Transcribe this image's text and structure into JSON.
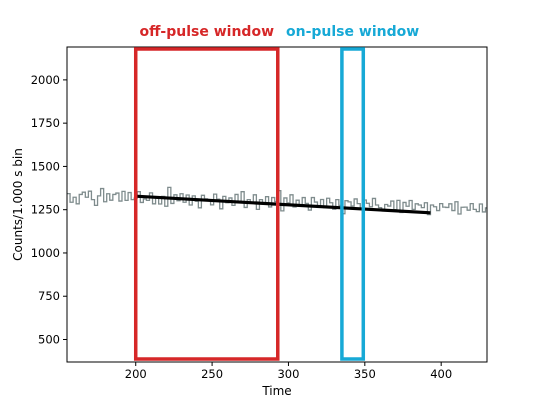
{
  "chart_data": {
    "type": "line",
    "xlabel": "Time",
    "ylabel": "Counts/1.000 s bin",
    "xlim": [
      155,
      430
    ],
    "ylim": [
      370,
      2190
    ],
    "xticks": [
      200,
      250,
      300,
      350,
      400
    ],
    "yticks": [
      500,
      750,
      1000,
      1250,
      1500,
      1750,
      2000
    ],
    "colors": {
      "counts": "#7f8c8d",
      "fit": "#000000",
      "off_pulse": "#d62728",
      "on_pulse": "#17a9d6"
    },
    "series": [
      {
        "style": "step",
        "x_start": 155,
        "x_step": 2,
        "values": [
          1343,
          1293,
          1322,
          1284,
          1338,
          1351,
          1322,
          1357,
          1308,
          1275,
          1330,
          1372,
          1296,
          1342,
          1305,
          1338,
          1346,
          1300,
          1356,
          1304,
          1349,
          1308,
          1317,
          1354,
          1292,
          1312,
          1304,
          1347,
          1284,
          1320,
          1283,
          1327,
          1270,
          1379,
          1286,
          1336,
          1302,
          1342,
          1293,
          1335,
          1277,
          1330,
          1299,
          1261,
          1333,
          1312,
          1304,
          1278,
          1340,
          1311,
          1255,
          1327,
          1290,
          1318,
          1275,
          1338,
          1298,
          1354,
          1263,
          1308,
          1293,
          1336,
          1252,
          1308,
          1282,
          1325,
          1266,
          1320,
          1297,
          1360,
          1243,
          1318,
          1289,
          1336,
          1266,
          1305,
          1275,
          1320,
          1286,
          1248,
          1320,
          1294,
          1273,
          1309,
          1262,
          1316,
          1290,
          1253,
          1308,
          1275,
          1227,
          1302,
          1295,
          1271,
          1312,
          1285,
          1258,
          1306,
          1287,
          1267,
          1315,
          1277,
          1262,
          1244,
          1280,
          1271,
          1300,
          1250,
          1304,
          1234,
          1292,
          1270,
          1303,
          1252,
          1284,
          1277,
          1262,
          1290,
          1222,
          1277,
          1267,
          1245,
          1285,
          1265,
          1263,
          1284,
          1245,
          1296,
          1225,
          1264,
          1265,
          1247,
          1285,
          1252,
          1239,
          1283,
          1237,
          1260,
          1233
        ]
      },
      {
        "style": "fit",
        "x": [
          200,
          393
        ],
        "y": [
          1328,
          1232
        ]
      }
    ],
    "annotations": [
      {
        "label": "off-pulse window",
        "x0": 200,
        "x1": 293
      },
      {
        "label": "on-pulse window",
        "x0": 335,
        "x1": 349
      }
    ]
  }
}
